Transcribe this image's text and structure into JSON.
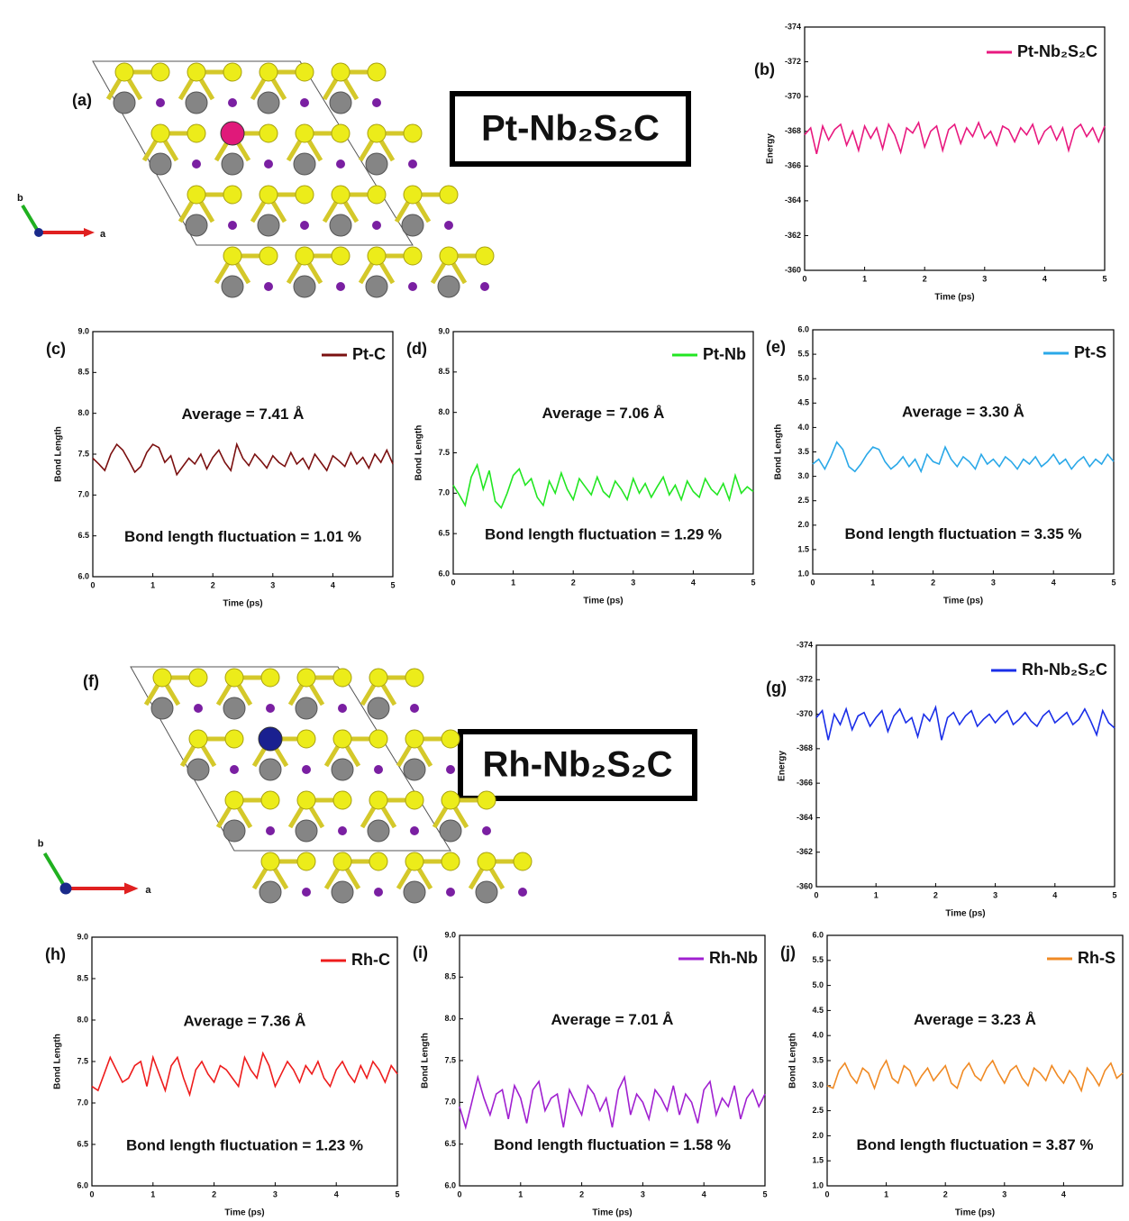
{
  "figures": [
    {
      "label": "(a)",
      "title": "Pt-Nb₂S₂C",
      "axis_a": "a",
      "axis_b": "b"
    },
    {
      "label": "(f)",
      "title": "Rh-Nb₂S₂C",
      "axis_a": "a",
      "axis_b": "b"
    }
  ],
  "chart_data": [
    {
      "type": "line",
      "panel_label": "(b)",
      "xlabel": "Time (ps)",
      "ylabel": "Energy",
      "x": [
        0,
        0.1,
        0.2,
        0.3,
        0.4,
        0.5,
        0.6,
        0.7,
        0.8,
        0.9,
        1,
        1.1,
        1.2,
        1.3,
        1.4,
        1.5,
        1.6,
        1.7,
        1.8,
        1.9,
        2,
        2.1,
        2.2,
        2.3,
        2.4,
        2.5,
        2.6,
        2.7,
        2.8,
        2.9,
        3,
        3.1,
        3.2,
        3.3,
        3.4,
        3.5,
        3.6,
        3.7,
        3.8,
        3.9,
        4,
        4.1,
        4.2,
        4.3,
        4.4,
        4.5,
        4.6,
        4.7,
        4.8,
        4.9,
        5
      ],
      "xlim": [
        0,
        5
      ],
      "xticks": [
        0,
        1,
        2,
        3,
        4,
        5
      ],
      "ylim": [
        -360,
        -374
      ],
      "yticks": [
        -374,
        -372,
        -370,
        -368,
        -366,
        -364,
        -362,
        -360
      ],
      "series": [
        {
          "name": "Pt-Nb₂S₂C",
          "color": "#e8197f",
          "values": [
            -367.8,
            -368.2,
            -366.7,
            -368.3,
            -367.5,
            -368.1,
            -368.4,
            -367.2,
            -368.0,
            -366.9,
            -368.3,
            -367.6,
            -368.2,
            -367.0,
            -368.4,
            -367.8,
            -366.8,
            -368.2,
            -367.9,
            -368.5,
            -367.1,
            -368.0,
            -368.3,
            -366.9,
            -368.1,
            -368.4,
            -367.3,
            -368.2,
            -367.7,
            -368.5,
            -367.6,
            -368.0,
            -367.2,
            -368.3,
            -368.1,
            -367.4,
            -368.2,
            -367.8,
            -368.4,
            -367.3,
            -368.0,
            -368.3,
            -367.5,
            -368.2,
            -366.9,
            -368.1,
            -368.4,
            -367.7,
            -368.2,
            -367.4,
            -368.3
          ]
        }
      ],
      "annotations": []
    },
    {
      "type": "line",
      "panel_label": "(c)",
      "xlabel": "Time (ps)",
      "ylabel": "Bond Length",
      "x": [
        0,
        0.1,
        0.2,
        0.3,
        0.4,
        0.5,
        0.6,
        0.7,
        0.8,
        0.9,
        1,
        1.1,
        1.2,
        1.3,
        1.4,
        1.5,
        1.6,
        1.7,
        1.8,
        1.9,
        2,
        2.1,
        2.2,
        2.3,
        2.4,
        2.5,
        2.6,
        2.7,
        2.8,
        2.9,
        3,
        3.1,
        3.2,
        3.3,
        3.4,
        3.5,
        3.6,
        3.7,
        3.8,
        3.9,
        4,
        4.1,
        4.2,
        4.3,
        4.4,
        4.5,
        4.6,
        4.7,
        4.8,
        4.9,
        5
      ],
      "xlim": [
        0,
        5
      ],
      "xticks": [
        0,
        1,
        2,
        3,
        4,
        5
      ],
      "ylim": [
        6,
        9
      ],
      "yticks": [
        {
          "value": 6,
          "label": "6.0"
        },
        6.5,
        {
          "value": 7,
          "label": "7.0"
        },
        7.5,
        {
          "value": 8,
          "label": "8.0"
        },
        8.5,
        {
          "value": 9,
          "label": "9.0"
        }
      ],
      "series": [
        {
          "name": "Pt-C",
          "color": "#7b1010",
          "values": [
            7.45,
            7.38,
            7.3,
            7.5,
            7.62,
            7.55,
            7.42,
            7.28,
            7.35,
            7.52,
            7.62,
            7.58,
            7.4,
            7.48,
            7.25,
            7.35,
            7.45,
            7.38,
            7.5,
            7.32,
            7.46,
            7.55,
            7.4,
            7.3,
            7.62,
            7.45,
            7.36,
            7.5,
            7.42,
            7.33,
            7.48,
            7.4,
            7.35,
            7.52,
            7.38,
            7.45,
            7.32,
            7.5,
            7.4,
            7.3,
            7.48,
            7.42,
            7.35,
            7.52,
            7.38,
            7.46,
            7.33,
            7.5,
            7.4,
            7.55,
            7.38
          ]
        }
      ],
      "annotations": [
        "Average = 7.41 Å",
        "Bond length fluctuation = 1.01 %"
      ]
    },
    {
      "type": "line",
      "panel_label": "(d)",
      "xlabel": "Time (ps)",
      "ylabel": "Bond Length",
      "x": [
        0,
        0.1,
        0.2,
        0.3,
        0.4,
        0.5,
        0.6,
        0.7,
        0.8,
        0.9,
        1,
        1.1,
        1.2,
        1.3,
        1.4,
        1.5,
        1.6,
        1.7,
        1.8,
        1.9,
        2,
        2.1,
        2.2,
        2.3,
        2.4,
        2.5,
        2.6,
        2.7,
        2.8,
        2.9,
        3,
        3.1,
        3.2,
        3.3,
        3.4,
        3.5,
        3.6,
        3.7,
        3.8,
        3.9,
        4,
        4.1,
        4.2,
        4.3,
        4.4,
        4.5,
        4.6,
        4.7,
        4.8,
        4.9,
        5
      ],
      "xlim": [
        0,
        5
      ],
      "xticks": [
        0,
        1,
        2,
        3,
        4,
        5
      ],
      "ylim": [
        6,
        9
      ],
      "yticks": [
        {
          "value": 6,
          "label": "6.0"
        },
        6.5,
        {
          "value": 7,
          "label": "7.0"
        },
        7.5,
        {
          "value": 8,
          "label": "8.0"
        },
        8.5,
        {
          "value": 9,
          "label": "9.0"
        }
      ],
      "series": [
        {
          "name": "Pt-Nb",
          "color": "#22e622",
          "values": [
            7.1,
            6.98,
            6.85,
            7.2,
            7.35,
            7.05,
            7.28,
            6.9,
            6.82,
            7.0,
            7.22,
            7.3,
            7.1,
            7.18,
            6.95,
            6.85,
            7.15,
            7.0,
            7.25,
            7.05,
            6.92,
            7.18,
            7.08,
            6.98,
            7.2,
            7.02,
            6.95,
            7.15,
            7.05,
            6.92,
            7.18,
            7.0,
            7.12,
            6.95,
            7.08,
            7.2,
            6.98,
            7.1,
            6.92,
            7.15,
            7.02,
            6.95,
            7.18,
            7.05,
            6.98,
            7.12,
            6.92,
            7.22,
            7.0,
            7.08,
            7.02
          ]
        }
      ],
      "annotations": [
        "Average = 7.06 Å",
        "Bond length fluctuation = 1.29 %"
      ]
    },
    {
      "type": "line",
      "panel_label": "(e)",
      "xlabel": "Time (ps)",
      "ylabel": "Bond Length",
      "x": [
        0,
        0.1,
        0.2,
        0.3,
        0.4,
        0.5,
        0.6,
        0.7,
        0.8,
        0.9,
        1,
        1.1,
        1.2,
        1.3,
        1.4,
        1.5,
        1.6,
        1.7,
        1.8,
        1.9,
        2,
        2.1,
        2.2,
        2.3,
        2.4,
        2.5,
        2.6,
        2.7,
        2.8,
        2.9,
        3,
        3.1,
        3.2,
        3.3,
        3.4,
        3.5,
        3.6,
        3.7,
        3.8,
        3.9,
        4,
        4.1,
        4.2,
        4.3,
        4.4,
        4.5,
        4.6,
        4.7,
        4.8,
        4.9,
        5
      ],
      "xlim": [
        0,
        5
      ],
      "xticks": [
        0,
        1,
        2,
        3,
        4,
        5
      ],
      "ylim": [
        1,
        6
      ],
      "yticks": [
        {
          "value": 1,
          "label": "1.0"
        },
        1.5,
        {
          "value": 2,
          "label": "2.0"
        },
        2.5,
        {
          "value": 3,
          "label": "3.0"
        },
        3.5,
        {
          "value": 4,
          "label": "4.0"
        },
        4.5,
        {
          "value": 5,
          "label": "5.0"
        },
        5.5,
        {
          "value": 6,
          "label": "6.0"
        }
      ],
      "series": [
        {
          "name": "Pt-S",
          "color": "#2aa8e8",
          "values": [
            3.25,
            3.35,
            3.15,
            3.4,
            3.7,
            3.55,
            3.2,
            3.1,
            3.25,
            3.45,
            3.6,
            3.55,
            3.3,
            3.15,
            3.25,
            3.4,
            3.2,
            3.35,
            3.1,
            3.45,
            3.3,
            3.25,
            3.6,
            3.35,
            3.2,
            3.4,
            3.3,
            3.15,
            3.45,
            3.25,
            3.35,
            3.2,
            3.4,
            3.3,
            3.15,
            3.35,
            3.25,
            3.4,
            3.2,
            3.3,
            3.45,
            3.25,
            3.35,
            3.15,
            3.3,
            3.4,
            3.2,
            3.35,
            3.25,
            3.45,
            3.3
          ]
        }
      ],
      "annotations": [
        "Average = 3.30 Å",
        "Bond length fluctuation = 3.35 %"
      ]
    },
    {
      "type": "line",
      "panel_label": "(g)",
      "xlabel": "Time (ps)",
      "ylabel": "Energy",
      "x": [
        0,
        0.1,
        0.2,
        0.3,
        0.4,
        0.5,
        0.6,
        0.7,
        0.8,
        0.9,
        1,
        1.1,
        1.2,
        1.3,
        1.4,
        1.5,
        1.6,
        1.7,
        1.8,
        1.9,
        2,
        2.1,
        2.2,
        2.3,
        2.4,
        2.5,
        2.6,
        2.7,
        2.8,
        2.9,
        3,
        3.1,
        3.2,
        3.3,
        3.4,
        3.5,
        3.6,
        3.7,
        3.8,
        3.9,
        4,
        4.1,
        4.2,
        4.3,
        4.4,
        4.5,
        4.6,
        4.7,
        4.8,
        4.9,
        5
      ],
      "xlim": [
        0,
        5
      ],
      "xticks": [
        0,
        1,
        2,
        3,
        4,
        5
      ],
      "ylim": [
        -360,
        -374
      ],
      "yticks": [
        -374,
        -372,
        -370,
        -368,
        -366,
        -364,
        -362,
        -360
      ],
      "series": [
        {
          "name": "Rh-Nb₂S₂C",
          "color": "#1a2ee8",
          "values": [
            -369.8,
            -370.2,
            -368.5,
            -370.0,
            -369.4,
            -370.3,
            -369.1,
            -369.9,
            -370.1,
            -369.3,
            -369.8,
            -370.2,
            -369.0,
            -369.9,
            -370.3,
            -369.5,
            -369.8,
            -368.7,
            -370.0,
            -369.6,
            -370.4,
            -368.5,
            -369.8,
            -370.1,
            -369.4,
            -369.9,
            -370.2,
            -369.3,
            -369.7,
            -370.0,
            -369.5,
            -369.9,
            -370.2,
            -369.4,
            -369.7,
            -370.1,
            -369.6,
            -369.3,
            -369.9,
            -370.2,
            -369.5,
            -369.8,
            -370.1,
            -369.4,
            -369.7,
            -370.3,
            -369.6,
            -368.8,
            -370.2,
            -369.5,
            -369.2
          ]
        }
      ],
      "annotations": []
    },
    {
      "type": "line",
      "panel_label": "(h)",
      "xlabel": "Time (ps)",
      "ylabel": "Bond Length",
      "x": [
        0,
        0.1,
        0.2,
        0.3,
        0.4,
        0.5,
        0.6,
        0.7,
        0.8,
        0.9,
        1,
        1.1,
        1.2,
        1.3,
        1.4,
        1.5,
        1.6,
        1.7,
        1.8,
        1.9,
        2,
        2.1,
        2.2,
        2.3,
        2.4,
        2.5,
        2.6,
        2.7,
        2.8,
        2.9,
        3,
        3.1,
        3.2,
        3.3,
        3.4,
        3.5,
        3.6,
        3.7,
        3.8,
        3.9,
        4,
        4.1,
        4.2,
        4.3,
        4.4,
        4.5,
        4.6,
        4.7,
        4.8,
        4.9,
        5
      ],
      "xlim": [
        0,
        5
      ],
      "xticks": [
        0,
        1,
        2,
        3,
        4,
        5
      ],
      "ylim": [
        6,
        9
      ],
      "yticks": [
        {
          "value": 6,
          "label": "6.0"
        },
        6.5,
        {
          "value": 7,
          "label": "7.0"
        },
        7.5,
        {
          "value": 8,
          "label": "8.0"
        },
        8.5,
        {
          "value": 9,
          "label": "9.0"
        }
      ],
      "series": [
        {
          "name": "Rh-C",
          "color": "#ee1c1c",
          "values": [
            7.2,
            7.15,
            7.35,
            7.55,
            7.4,
            7.25,
            7.3,
            7.45,
            7.5,
            7.2,
            7.55,
            7.35,
            7.15,
            7.45,
            7.55,
            7.3,
            7.1,
            7.4,
            7.5,
            7.35,
            7.25,
            7.45,
            7.4,
            7.3,
            7.2,
            7.55,
            7.4,
            7.3,
            7.6,
            7.45,
            7.2,
            7.35,
            7.5,
            7.4,
            7.25,
            7.45,
            7.35,
            7.5,
            7.3,
            7.2,
            7.4,
            7.5,
            7.35,
            7.25,
            7.45,
            7.3,
            7.5,
            7.4,
            7.25,
            7.45,
            7.35
          ]
        }
      ],
      "annotations": [
        "Average = 7.36 Å",
        "Bond length fluctuation = 1.23 %"
      ]
    },
    {
      "type": "line",
      "panel_label": "(i)",
      "xlabel": "Time (ps)",
      "ylabel": "Bond Length",
      "x": [
        0,
        0.1,
        0.2,
        0.3,
        0.4,
        0.5,
        0.6,
        0.7,
        0.8,
        0.9,
        1,
        1.1,
        1.2,
        1.3,
        1.4,
        1.5,
        1.6,
        1.7,
        1.8,
        1.9,
        2,
        2.1,
        2.2,
        2.3,
        2.4,
        2.5,
        2.6,
        2.7,
        2.8,
        2.9,
        3,
        3.1,
        3.2,
        3.3,
        3.4,
        3.5,
        3.6,
        3.7,
        3.8,
        3.9,
        4,
        4.1,
        4.2,
        4.3,
        4.4,
        4.5,
        4.6,
        4.7,
        4.8,
        4.9,
        5
      ],
      "xlim": [
        0,
        5
      ],
      "xticks": [
        0,
        1,
        2,
        3,
        4,
        5
      ],
      "ylim": [
        6,
        9
      ],
      "yticks": [
        {
          "value": 6,
          "label": "6.0"
        },
        6.5,
        {
          "value": 7,
          "label": "7.0"
        },
        7.5,
        {
          "value": 8,
          "label": "8.0"
        },
        8.5,
        {
          "value": 9,
          "label": "9.0"
        }
      ],
      "series": [
        {
          "name": "Rh-Nb",
          "color": "#a020d0",
          "values": [
            6.95,
            6.7,
            7.0,
            7.3,
            7.05,
            6.85,
            7.1,
            7.15,
            6.8,
            7.2,
            7.05,
            6.75,
            7.15,
            7.25,
            6.9,
            7.05,
            7.1,
            6.7,
            7.15,
            7.0,
            6.85,
            7.2,
            7.1,
            6.9,
            7.05,
            6.7,
            7.15,
            7.3,
            6.85,
            7.1,
            7.0,
            6.8,
            7.15,
            7.05,
            6.9,
            7.2,
            6.85,
            7.1,
            7.0,
            6.75,
            7.15,
            7.25,
            6.85,
            7.05,
            6.95,
            7.2,
            6.8,
            7.05,
            7.15,
            6.95,
            7.1
          ]
        }
      ],
      "annotations": [
        "Average = 7.01 Å",
        "Bond length fluctuation = 1.58 %"
      ]
    },
    {
      "type": "line",
      "panel_label": "(j)",
      "xlabel": "Time (ps)",
      "ylabel": "Bond Length",
      "x": [
        0,
        0.1,
        0.2,
        0.3,
        0.4,
        0.5,
        0.6,
        0.7,
        0.8,
        0.9,
        1,
        1.1,
        1.2,
        1.3,
        1.4,
        1.5,
        1.6,
        1.7,
        1.8,
        1.9,
        2,
        2.1,
        2.2,
        2.3,
        2.4,
        2.5,
        2.6,
        2.7,
        2.8,
        2.9,
        3,
        3.1,
        3.2,
        3.3,
        3.4,
        3.5,
        3.6,
        3.7,
        3.8,
        3.9,
        4,
        4.1,
        4.2,
        4.3,
        4.4,
        4.5,
        4.6,
        4.7,
        4.8,
        4.9,
        5
      ],
      "xlim": [
        0,
        5
      ],
      "xticks": [
        0,
        1,
        2,
        3,
        4
      ],
      "ylim": [
        1,
        6
      ],
      "yticks": [
        {
          "value": 1,
          "label": "1.0"
        },
        1.5,
        {
          "value": 2,
          "label": "2.0"
        },
        2.5,
        {
          "value": 3,
          "label": "3.0"
        },
        3.5,
        {
          "value": 4,
          "label": "4.0"
        },
        4.5,
        {
          "value": 5,
          "label": "5.0"
        },
        5.5,
        {
          "value": 6,
          "label": "6.0"
        }
      ],
      "series": [
        {
          "name": "Rh-S",
          "color": "#f08a24",
          "values": [
            3.0,
            2.95,
            3.3,
            3.45,
            3.2,
            3.05,
            3.35,
            3.25,
            2.95,
            3.3,
            3.5,
            3.15,
            3.05,
            3.4,
            3.3,
            3.0,
            3.2,
            3.35,
            3.1,
            3.25,
            3.4,
            3.05,
            2.95,
            3.3,
            3.45,
            3.2,
            3.1,
            3.35,
            3.5,
            3.25,
            3.05,
            3.3,
            3.4,
            3.15,
            3.0,
            3.35,
            3.25,
            3.1,
            3.4,
            3.2,
            3.05,
            3.3,
            3.15,
            2.9,
            3.35,
            3.2,
            3.0,
            3.3,
            3.45,
            3.15,
            3.25
          ]
        }
      ],
      "annotations": [
        "Average = 3.23 Å",
        "Bond length fluctuation = 3.87 %"
      ]
    }
  ]
}
